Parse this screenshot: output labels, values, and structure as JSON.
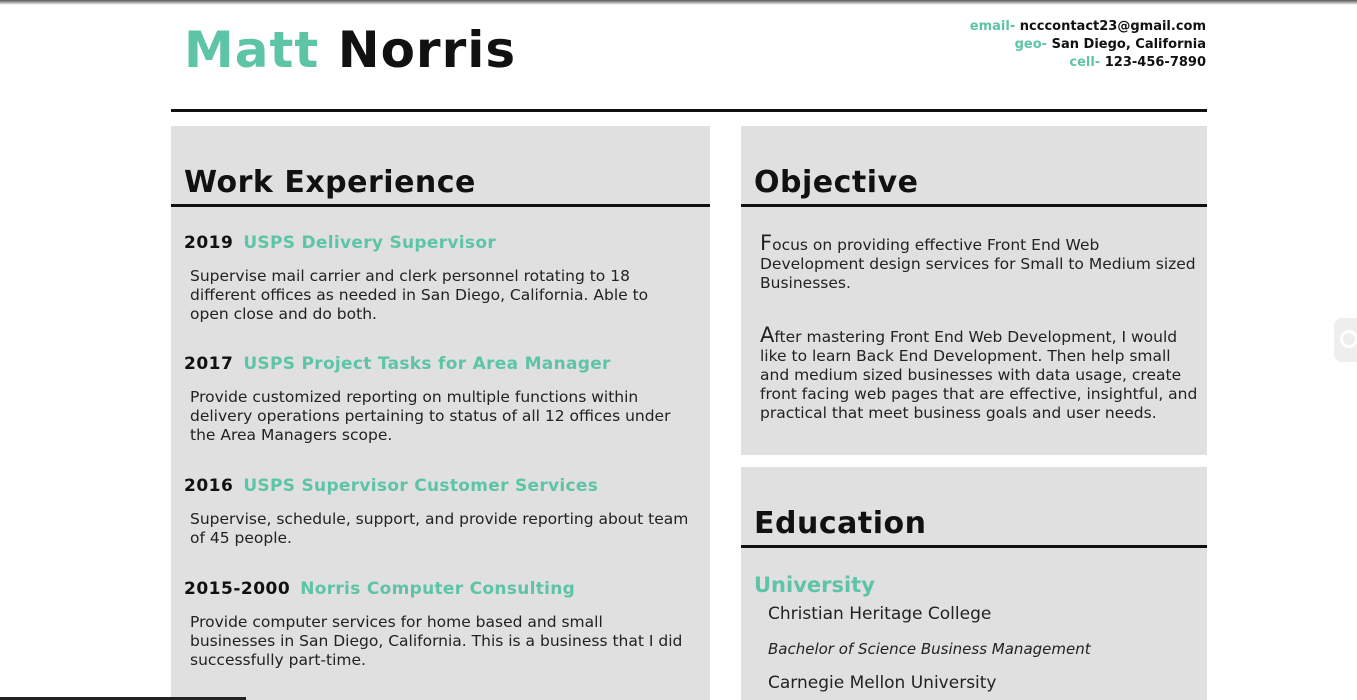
{
  "header": {
    "first_name": "Matt",
    "last_name": "Norris",
    "contact": [
      {
        "label": "email-",
        "value": "ncccontact23@gmail.com"
      },
      {
        "label": "geo-",
        "value": "San Diego, California"
      },
      {
        "label": "cell-",
        "value": "123-456-7890"
      }
    ]
  },
  "work": {
    "heading": "Work Experience",
    "jobs": [
      {
        "year": "2019",
        "title": "USPS Delivery Supervisor",
        "description": "Supervise mail carrier and clerk personnel rotating to 18 different offices as needed in San Diego, California. Able to open close and do both."
      },
      {
        "year": "2017",
        "title": "USPS Project Tasks for Area Manager",
        "description": "Provide customized reporting on multiple functions within delivery operations pertaining to status of all 12 offices under the Area Managers scope."
      },
      {
        "year": "2016",
        "title": "USPS Supervisor Customer Services",
        "description": "Supervise, schedule, support, and provide reporting about team of 45 people."
      },
      {
        "year": "2015-2000",
        "title": "Norris Computer Consulting",
        "description": "Provide computer services for home based and small businesses in San Diego, California. This is a business that I did successfully part-time."
      }
    ]
  },
  "objective": {
    "heading": "Objective",
    "paragraphs": [
      {
        "first_letter": "F",
        "rest": "ocus on providing effective Front End Web Development design services for Small to Medium sized Businesses."
      },
      {
        "first_letter": "A",
        "rest": "fter mastering Front End Web Development, I would like to learn Back End Development. Then help small and medium sized businesses with data usage, create front facing web pages that are effective, insightful, and practical that meet business goals and user needs."
      }
    ]
  },
  "education": {
    "heading": "Education",
    "subheading": "University",
    "entries": [
      "Christian Heritage College",
      "Bachelor of Science Business Management",
      "Carnegie Mellon University"
    ]
  },
  "colors": {
    "accent": "#5ec4a6",
    "panel_bg": "#e0e0e0",
    "text": "#111111"
  }
}
